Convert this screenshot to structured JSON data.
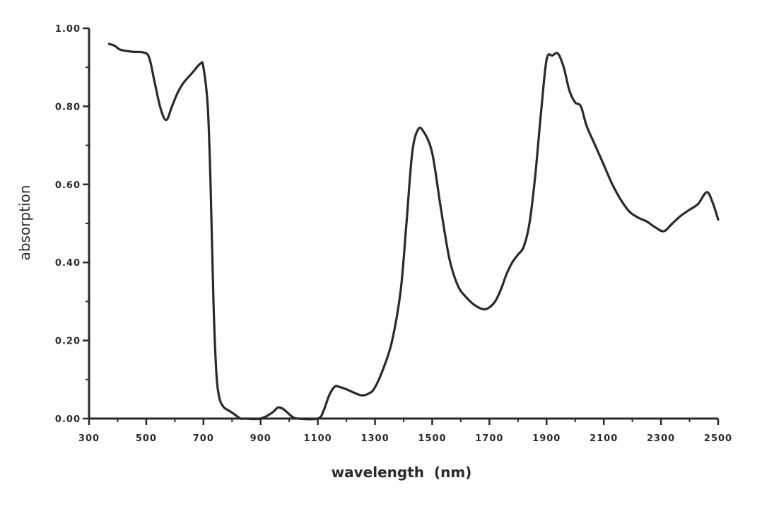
{
  "chart_data": {
    "type": "line",
    "title": "",
    "xlabel": "wavelength  (nm)",
    "ylabel": "absorption",
    "xlim": [
      300,
      2500
    ],
    "ylim": [
      0,
      1.0
    ],
    "grid": false,
    "legend": "none",
    "line_color": "#2a2a2a",
    "x_tick_labels": [
      "300",
      "500",
      "700",
      "900",
      "1100",
      "1300",
      "1500",
      "1700",
      "1900",
      "2100",
      "2300",
      "2500"
    ],
    "x_tick_values": [
      300,
      500,
      700,
      900,
      1100,
      1300,
      1500,
      1700,
      1900,
      2100,
      2300,
      2500
    ],
    "y_tick_labels": [
      "0.00",
      "0.20",
      "0.40",
      "0.60",
      "0.80",
      "1.00"
    ],
    "y_tick_values": [
      0.0,
      0.2,
      0.4,
      0.6,
      0.8,
      1.0
    ],
    "series": [
      {
        "x": [
          370,
          390,
          410,
          450,
          490,
          510,
          530,
          550,
          570,
          590,
          610,
          630,
          660,
          690,
          700,
          715,
          725,
          735,
          745,
          755,
          770,
          790,
          810,
          830,
          845,
          900,
          940,
          960,
          975,
          990,
          1010,
          1030,
          1100,
          1120,
          1140,
          1160,
          1180,
          1200,
          1250,
          1280,
          1300,
          1330,
          1360,
          1390,
          1410,
          1430,
          1450,
          1470,
          1500,
          1530,
          1560,
          1590,
          1620,
          1650,
          1680,
          1700,
          1720,
          1740,
          1760,
          1780,
          1800,
          1820,
          1840,
          1860,
          1880,
          1900,
          1920,
          1940,
          1960,
          1980,
          2000,
          2020,
          2040,
          2070,
          2100,
          2130,
          2160,
          2190,
          2220,
          2250,
          2280,
          2310,
          2340,
          2370,
          2400,
          2430,
          2460,
          2480,
          2500
        ],
        "y": [
          0.96,
          0.955,
          0.945,
          0.94,
          0.938,
          0.925,
          0.86,
          0.795,
          0.765,
          0.8,
          0.835,
          0.86,
          0.885,
          0.91,
          0.9,
          0.8,
          0.6,
          0.3,
          0.12,
          0.055,
          0.03,
          0.02,
          0.01,
          0.0,
          0.0,
          0.0,
          0.015,
          0.028,
          0.026,
          0.018,
          0.005,
          0.0,
          0.0,
          0.02,
          0.06,
          0.082,
          0.08,
          0.075,
          0.06,
          0.065,
          0.08,
          0.13,
          0.2,
          0.33,
          0.5,
          0.68,
          0.74,
          0.735,
          0.68,
          0.54,
          0.41,
          0.34,
          0.31,
          0.29,
          0.28,
          0.285,
          0.3,
          0.33,
          0.37,
          0.4,
          0.42,
          0.44,
          0.5,
          0.62,
          0.78,
          0.92,
          0.93,
          0.935,
          0.9,
          0.84,
          0.81,
          0.8,
          0.75,
          0.7,
          0.65,
          0.6,
          0.56,
          0.53,
          0.515,
          0.505,
          0.49,
          0.48,
          0.5,
          0.52,
          0.535,
          0.55,
          0.58,
          0.555,
          0.51
        ]
      }
    ]
  }
}
